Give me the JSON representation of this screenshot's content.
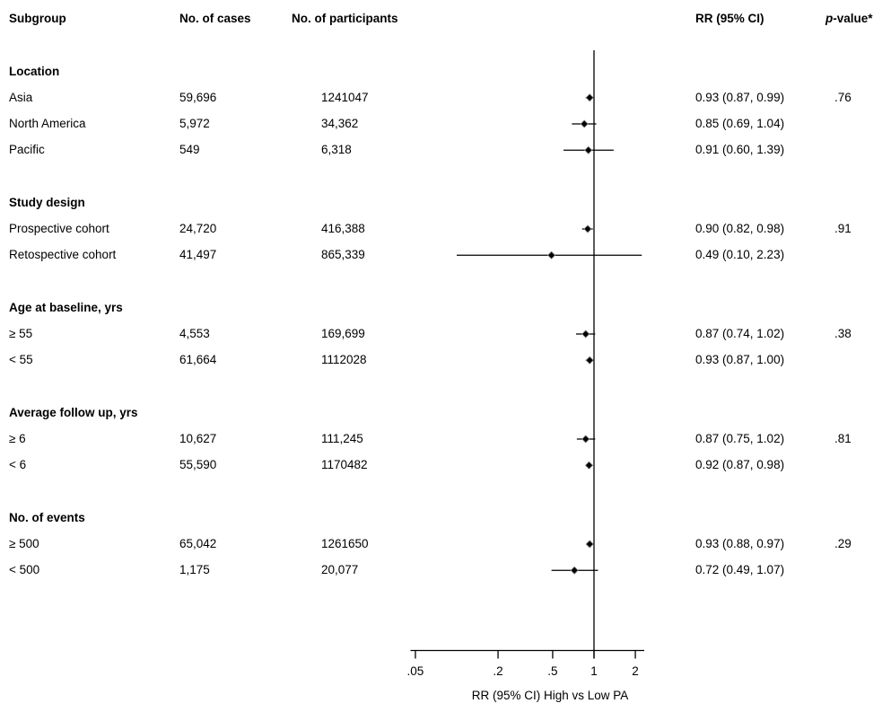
{
  "chart_data": {
    "type": "forest",
    "xlabel": "RR (95% CI) High vs Low PA",
    "x_scale": "log",
    "x_ticks": [
      0.05,
      0.2,
      0.5,
      1,
      2
    ],
    "x_tick_labels": [
      ".05",
      ".2",
      ".5",
      "1",
      "2"
    ],
    "reference_line": 1,
    "x_range": [
      0.045,
      2.4
    ],
    "legend": "none",
    "grid": "off",
    "columns": {
      "subgroup": "Subgroup",
      "cases": "No. of cases",
      "participants": "No. of participants",
      "rr": "RR (95% CI)",
      "p_italic": "p",
      "p_rest": "-value*"
    },
    "groups": [
      {
        "label": "Location",
        "rows": [
          {
            "subgroup": "Asia",
            "cases": "59,696",
            "participants": "1241047",
            "rr": 0.93,
            "lo": 0.87,
            "hi": 0.99,
            "rr_text": "0.93 (0.87, 0.99)",
            "p": ".76"
          },
          {
            "subgroup": "North America",
            "cases": "5,972",
            "participants": "34,362",
            "rr": 0.85,
            "lo": 0.69,
            "hi": 1.04,
            "rr_text": "0.85 (0.69, 1.04)"
          },
          {
            "subgroup": "Pacific",
            "cases": "549",
            "participants": "6,318",
            "rr": 0.91,
            "lo": 0.6,
            "hi": 1.39,
            "rr_text": "0.91 (0.60, 1.39)"
          }
        ]
      },
      {
        "label": "Study design",
        "rows": [
          {
            "subgroup": "Prospective cohort",
            "cases": "24,720",
            "participants": "416,388",
            "rr": 0.9,
            "lo": 0.82,
            "hi": 0.98,
            "rr_text": "0.90 (0.82, 0.98)",
            "p": ".91"
          },
          {
            "subgroup": "Retospective cohort",
            "cases": "41,497",
            "participants": "865,339",
            "rr": 0.49,
            "lo": 0.1,
            "hi": 2.23,
            "rr_text": "0.49 (0.10, 2.23)"
          }
        ]
      },
      {
        "label": "Age at baseline, yrs",
        "rows": [
          {
            "subgroup": "≥ 55",
            "cases": "4,553",
            "participants": "169,699",
            "rr": 0.87,
            "lo": 0.74,
            "hi": 1.02,
            "rr_text": "0.87 (0.74, 1.02)",
            "p": ".38"
          },
          {
            "subgroup": "< 55",
            "cases": "61,664",
            "participants": "1112028",
            "rr": 0.93,
            "lo": 0.87,
            "hi": 1.0,
            "rr_text": "0.93 (0.87, 1.00)"
          }
        ]
      },
      {
        "label": "Average follow up, yrs",
        "rows": [
          {
            "subgroup": "≥ 6",
            "cases": "10,627",
            "participants": "111,245",
            "rr": 0.87,
            "lo": 0.75,
            "hi": 1.02,
            "rr_text": "0.87 (0.75, 1.02)",
            "p": ".81"
          },
          {
            "subgroup": "< 6",
            "cases": "55,590",
            "participants": "1170482",
            "rr": 0.92,
            "lo": 0.87,
            "hi": 0.98,
            "rr_text": "0.92 (0.87, 0.98)"
          }
        ]
      },
      {
        "label": "No. of events",
        "rows": [
          {
            "subgroup": "≥ 500",
            "cases": "65,042",
            "participants": "1261650",
            "rr": 0.93,
            "lo": 0.88,
            "hi": 0.97,
            "rr_text": "0.93 (0.88, 0.97)",
            "p": ".29"
          },
          {
            "subgroup": "< 500",
            "cases": "1,175",
            "participants": "20,077",
            "rr": 0.72,
            "lo": 0.49,
            "hi": 1.07,
            "rr_text": "0.72 (0.49, 1.07)"
          }
        ]
      }
    ]
  }
}
